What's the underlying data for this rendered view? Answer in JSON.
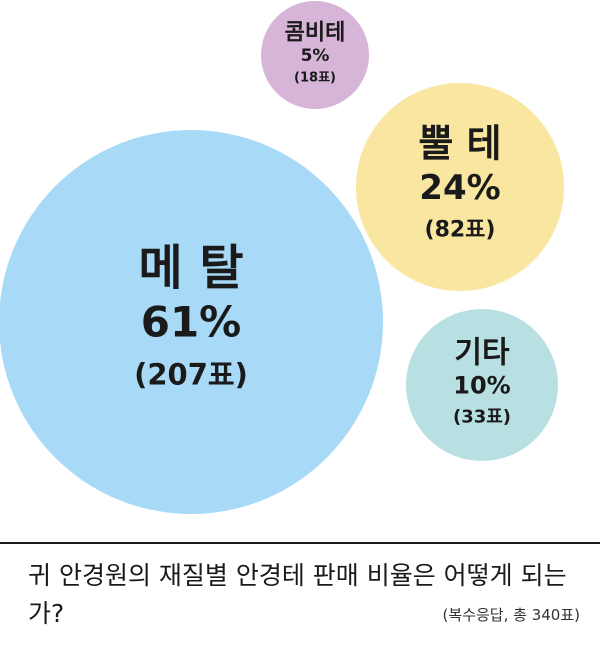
{
  "chart_data": {
    "type": "bubble",
    "title": "귀 안경원의 재질별 안경테 판매 비율은 어떻게 되는가?",
    "note": "(복수응답, 총 340표)",
    "series": [
      {
        "name": "메 탈",
        "percent": "61%",
        "votes": "(207표)",
        "value": 61,
        "count": 207,
        "color": "#a8d9f7"
      },
      {
        "name": "뿔 테",
        "percent": "24%",
        "votes": "(82표)",
        "value": 24,
        "count": 82,
        "color": "#f9e6a1"
      },
      {
        "name": "기타",
        "percent": "10%",
        "votes": "(33표)",
        "value": 10,
        "count": 33,
        "color": "#b8e0e3"
      },
      {
        "name": "콤비테",
        "percent": "5%",
        "votes": "(18표)",
        "value": 5,
        "count": 18,
        "color": "#d6b5d8"
      }
    ]
  }
}
